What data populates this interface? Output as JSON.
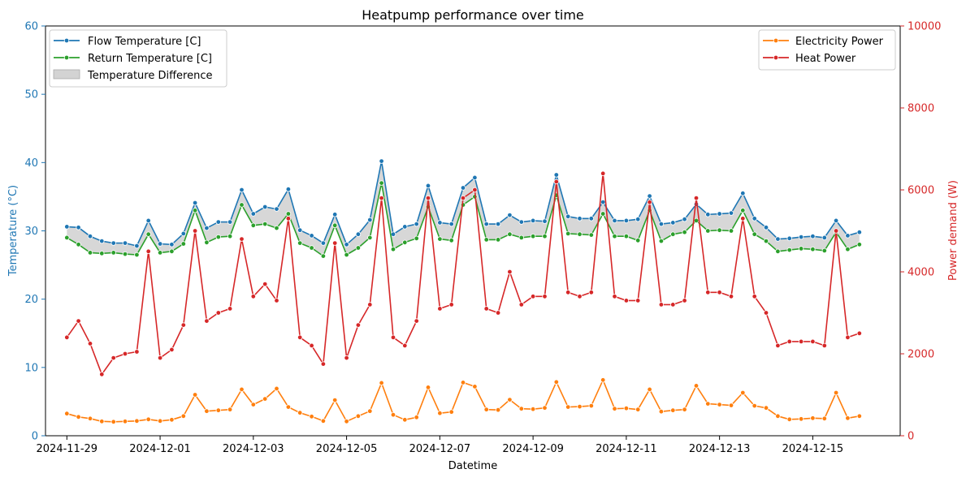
{
  "chart_data": {
    "type": "line",
    "title": "Heatpump performance over time",
    "xlabel": "Datetime",
    "ylabel_left": "Temperature (°C)",
    "ylabel_right": "Power demand (W)",
    "x_ticks": [
      "2024-11-29",
      "2024-12-01",
      "2024-12-03",
      "2024-12-05",
      "2024-12-07",
      "2024-12-09",
      "2024-12-11",
      "2024-12-13",
      "2024-12-15"
    ],
    "x_range": [
      "2024-11-28T13:00",
      "2024-12-16T21:00"
    ],
    "ylim_left": [
      0,
      60
    ],
    "yticks_left": [
      0,
      10,
      20,
      30,
      40,
      50,
      60
    ],
    "ylim_right": [
      0,
      10000
    ],
    "yticks_right": [
      0,
      2000,
      4000,
      6000,
      8000,
      10000
    ],
    "grid": false,
    "legend_left": {
      "placement": "top-left",
      "entries": [
        "Flow Temperature [C]",
        "Return Temperature [C]",
        "Temperature Difference"
      ]
    },
    "legend_right": {
      "placement": "top-right",
      "entries": [
        "Electricity Power",
        "Heat Power"
      ]
    },
    "colors": {
      "flow": "#1f77b4",
      "return": "#2ca02c",
      "diff_fill": "#d3d3d3",
      "electricity": "#ff7f0e",
      "heat": "#d62728",
      "left_axis": "#1f77b4",
      "right_axis": "#d62728"
    },
    "x": [
      "2024-11-29T00:00",
      "2024-11-29T06:00",
      "2024-11-29T12:00",
      "2024-11-29T18:00",
      "2024-11-30T00:00",
      "2024-11-30T06:00",
      "2024-11-30T12:00",
      "2024-11-30T18:00",
      "2024-12-01T00:00",
      "2024-12-01T06:00",
      "2024-12-01T12:00",
      "2024-12-01T18:00",
      "2024-12-02T00:00",
      "2024-12-02T06:00",
      "2024-12-02T12:00",
      "2024-12-02T18:00",
      "2024-12-03T00:00",
      "2024-12-03T06:00",
      "2024-12-03T12:00",
      "2024-12-03T18:00",
      "2024-12-04T00:00",
      "2024-12-04T06:00",
      "2024-12-04T12:00",
      "2024-12-04T18:00",
      "2024-12-05T00:00",
      "2024-12-05T06:00",
      "2024-12-05T12:00",
      "2024-12-05T18:00",
      "2024-12-06T00:00",
      "2024-12-06T06:00",
      "2024-12-06T12:00",
      "2024-12-06T18:00",
      "2024-12-07T00:00",
      "2024-12-07T06:00",
      "2024-12-07T12:00",
      "2024-12-07T18:00",
      "2024-12-08T00:00",
      "2024-12-08T06:00",
      "2024-12-08T12:00",
      "2024-12-08T18:00",
      "2024-12-09T00:00",
      "2024-12-09T06:00",
      "2024-12-09T12:00",
      "2024-12-09T18:00",
      "2024-12-10T00:00",
      "2024-12-10T06:00",
      "2024-12-10T12:00",
      "2024-12-10T18:00",
      "2024-12-11T00:00",
      "2024-12-11T06:00",
      "2024-12-11T12:00",
      "2024-12-11T18:00",
      "2024-12-12T00:00",
      "2024-12-12T06:00",
      "2024-12-12T12:00",
      "2024-12-12T18:00",
      "2024-12-13T00:00",
      "2024-12-13T06:00",
      "2024-12-13T12:00",
      "2024-12-13T18:00",
      "2024-12-14T00:00",
      "2024-12-14T06:00",
      "2024-12-14T12:00",
      "2024-12-14T18:00",
      "2024-12-15T00:00",
      "2024-12-15T06:00",
      "2024-12-15T12:00",
      "2024-12-15T18:00",
      "2024-12-16T00:00"
    ],
    "series": [
      {
        "name": "Flow Temperature [C]",
        "axis": "left",
        "values": [
          30.6,
          30.5,
          29.2,
          28.5,
          28.2,
          28.2,
          27.8,
          31.5,
          28.1,
          28.0,
          29.6,
          34.1,
          30.4,
          31.3,
          31.3,
          36.0,
          32.5,
          33.5,
          33.2,
          36.1,
          30.1,
          29.3,
          28.2,
          32.4,
          28.0,
          29.5,
          31.6,
          40.2,
          29.5,
          30.6,
          31.0,
          36.6,
          31.2,
          31.0,
          36.3,
          37.8,
          31.0,
          31.0,
          32.3,
          31.3,
          31.5,
          31.4,
          38.2,
          32.1,
          31.8,
          31.8,
          34.2,
          31.5,
          31.5,
          31.7,
          35.1,
          31.0,
          31.2,
          31.7,
          33.9,
          32.4,
          32.5,
          32.6,
          35.5,
          31.8,
          30.5,
          28.8,
          28.9,
          29.1,
          29.2,
          29.0,
          31.5,
          29.3,
          29.8
        ]
      },
      {
        "name": "Return Temperature [C]",
        "axis": "left",
        "values": [
          29.0,
          28.0,
          26.8,
          26.7,
          26.8,
          26.6,
          26.5,
          29.5,
          26.8,
          27.0,
          28.1,
          33.0,
          28.3,
          29.1,
          29.2,
          33.8,
          30.8,
          31.0,
          30.4,
          32.5,
          28.2,
          27.5,
          26.3,
          30.8,
          26.5,
          27.5,
          29.0,
          37.0,
          27.3,
          28.3,
          28.9,
          33.5,
          28.8,
          28.6,
          33.8,
          35.0,
          28.7,
          28.7,
          29.5,
          29.0,
          29.2,
          29.2,
          35.2,
          29.6,
          29.5,
          29.4,
          32.5,
          29.2,
          29.2,
          28.6,
          33.0,
          28.5,
          29.5,
          29.8,
          31.5,
          30.0,
          30.1,
          30.0,
          33.0,
          29.5,
          28.5,
          27.0,
          27.2,
          27.4,
          27.3,
          27.1,
          29.8,
          27.3,
          28.0
        ]
      },
      {
        "name": "Electricity Power",
        "axis": "right",
        "values": [
          540,
          460,
          420,
          350,
          340,
          350,
          360,
          400,
          360,
          390,
          480,
          1000,
          600,
          620,
          640,
          1130,
          760,
          900,
          1150,
          700,
          560,
          470,
          360,
          870,
          350,
          480,
          600,
          1290,
          510,
          390,
          450,
          1180,
          550,
          580,
          1300,
          1200,
          640,
          630,
          880,
          660,
          650,
          680,
          1310,
          700,
          710,
          730,
          1360,
          660,
          670,
          640,
          1130,
          590,
          620,
          640,
          1220,
          780,
          760,
          740,
          1050,
          730,
          680,
          480,
          400,
          410,
          430,
          420,
          1050,
          430,
          480
        ]
      },
      {
        "name": "Heat Power",
        "axis": "right",
        "values": [
          2400,
          2800,
          2250,
          1500,
          1900,
          2000,
          2050,
          4500,
          1900,
          2100,
          2700,
          5000,
          2800,
          3000,
          3100,
          4800,
          3400,
          3700,
          3300,
          5300,
          2400,
          2200,
          1750,
          4700,
          1900,
          2700,
          3200,
          5800,
          2400,
          2200,
          2800,
          5800,
          3100,
          3200,
          5800,
          6000,
          3100,
          3000,
          4000,
          3200,
          3400,
          3400,
          6200,
          3500,
          3400,
          3500,
          6400,
          3400,
          3300,
          3300,
          5700,
          3200,
          3200,
          3300,
          5800,
          3500,
          3500,
          3400,
          5300,
          3400,
          3000,
          2200,
          2300,
          2300,
          2300,
          2200,
          5000,
          2400,
          2500
        ]
      }
    ]
  }
}
